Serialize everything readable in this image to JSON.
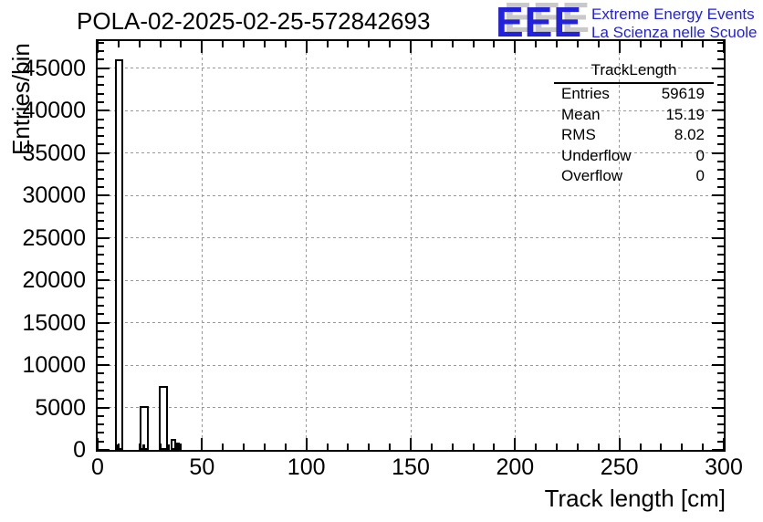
{
  "title": "POLA-02-2025-02-25-572842693",
  "logo": {
    "acronym": "EEE",
    "line1": "Extreme Energy Events",
    "line2": "La Scienza nelle Scuole",
    "color": "#2222dd",
    "shadow_color": "#c9c9c9"
  },
  "stats_box": {
    "title": "TrackLength",
    "rows": [
      {
        "label": "Entries",
        "value": "59619"
      },
      {
        "label": "Mean",
        "value": "15.19"
      },
      {
        "label": "RMS",
        "value": "8.02"
      },
      {
        "label": "Underflow",
        "value": "0"
      },
      {
        "label": "Overflow",
        "value": "0"
      }
    ]
  },
  "chart_data": {
    "type": "bar",
    "title": "POLA-02-2025-02-25-572842693",
    "xlabel": "Track length [cm]",
    "ylabel": "Entries/bin",
    "xlim": [
      0,
      300
    ],
    "ylim": [
      0,
      48200
    ],
    "x_major_ticks": [
      0,
      50,
      100,
      150,
      200,
      250,
      300
    ],
    "x_minor_step": 10,
    "y_major_ticks": [
      0,
      5000,
      10000,
      15000,
      20000,
      25000,
      30000,
      35000,
      40000,
      45000
    ],
    "y_minor_step": 1000,
    "grid": true,
    "grid_style": "dashed",
    "grid_color": "#999999",
    "bar_outline_color": "#000000",
    "bar_fill": "#ffffff",
    "bins": [
      {
        "x1": 8.3,
        "x2": 12.2,
        "count": 46000,
        "style": "outline"
      },
      {
        "x1": 8.8,
        "x2": 10.2,
        "count": 650,
        "style": "filled"
      },
      {
        "x1": 20.0,
        "x2": 24.3,
        "count": 5150,
        "style": "outline"
      },
      {
        "x1": 21.3,
        "x2": 22.6,
        "count": 650,
        "style": "filled"
      },
      {
        "x1": 29.3,
        "x2": 33.5,
        "count": 7500,
        "style": "outline"
      },
      {
        "x1": 33.5,
        "x2": 34.6,
        "count": 600,
        "style": "filled"
      },
      {
        "x1": 34.8,
        "x2": 37.4,
        "count": 1300,
        "style": "outline"
      },
      {
        "x1": 37.4,
        "x2": 39.1,
        "count": 850,
        "style": "outline"
      }
    ]
  }
}
